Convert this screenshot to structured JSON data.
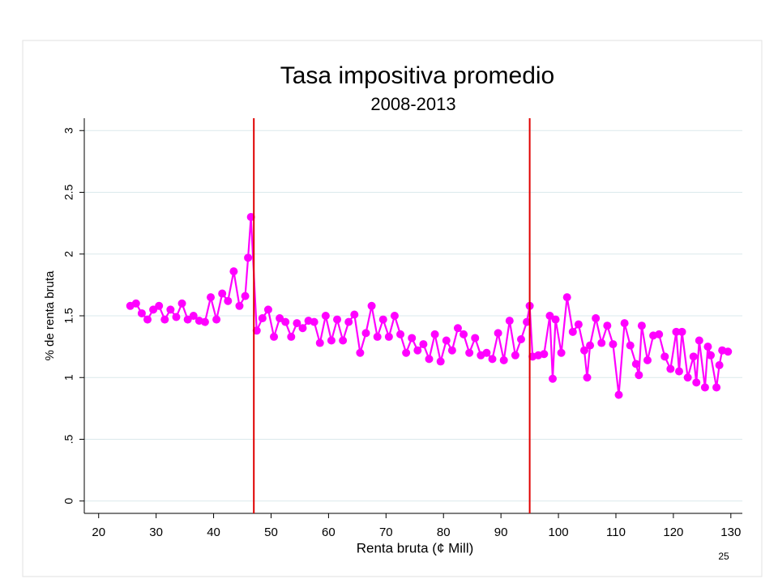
{
  "slide_number": "25",
  "chart_data": {
    "type": "line",
    "title": "Tasa impositiva promedio",
    "subtitle": "2008-2013",
    "xlabel": "Renta bruta (¢ Mill)",
    "ylabel": "% de renta bruta",
    "color": "#ff00ff",
    "grid": true,
    "vlines": [
      47,
      95
    ],
    "vline_color": "#e00000",
    "xlim": [
      17.5,
      132
    ],
    "ylim": [
      -0.1,
      3.1
    ],
    "xticks": [
      20,
      30,
      40,
      50,
      60,
      70,
      80,
      90,
      100,
      110,
      120,
      130
    ],
    "yticks": [
      0,
      {
        "value": 0.5,
        "label": ".5"
      },
      1,
      1.5,
      2,
      2.5,
      3
    ],
    "x": [
      25.5,
      26.5,
      27.5,
      28.5,
      29.5,
      30.5,
      31.5,
      32.5,
      33.5,
      34.5,
      35.5,
      36.5,
      37.5,
      38.5,
      39.5,
      40.5,
      41.5,
      42.5,
      43.5,
      44.5,
      45.5,
      46.0,
      46.5,
      47.5,
      48.5,
      49.5,
      50.5,
      51.5,
      52.5,
      53.5,
      54.5,
      55.5,
      56.5,
      57.5,
      58.5,
      59.5,
      60.5,
      61.5,
      62.5,
      63.5,
      64.5,
      65.5,
      66.5,
      67.5,
      68.5,
      69.5,
      70.5,
      71.5,
      72.5,
      73.5,
      74.5,
      75.5,
      76.5,
      77.5,
      78.5,
      79.5,
      80.5,
      81.5,
      82.5,
      83.5,
      84.5,
      85.5,
      86.5,
      87.5,
      88.5,
      89.5,
      90.5,
      91.5,
      92.5,
      93.5,
      94.5,
      95.0,
      95.5,
      96.5,
      97.5,
      98.5,
      99.0,
      99.5,
      100.5,
      101.5,
      102.5,
      103.5,
      104.5,
      105.0,
      105.5,
      106.5,
      107.5,
      108.5,
      109.5,
      110.5,
      111.5,
      112.5,
      113.5,
      114.0,
      114.5,
      115.5,
      116.5,
      117.5,
      118.5,
      119.5,
      120.5,
      121.0,
      121.5,
      122.5,
      123.5,
      124.0,
      124.5,
      125.5,
      126.0,
      126.5,
      127.5,
      128.0,
      128.5,
      129.5
    ],
    "values": [
      1.58,
      1.6,
      1.52,
      1.47,
      1.55,
      1.58,
      1.47,
      1.55,
      1.49,
      1.6,
      1.47,
      1.5,
      1.46,
      1.45,
      1.65,
      1.47,
      1.68,
      1.62,
      1.86,
      1.58,
      1.66,
      1.97,
      2.3,
      1.38,
      1.48,
      1.55,
      1.33,
      1.48,
      1.45,
      1.33,
      1.44,
      1.4,
      1.46,
      1.45,
      1.28,
      1.5,
      1.3,
      1.47,
      1.3,
      1.45,
      1.51,
      1.2,
      1.36,
      1.58,
      1.33,
      1.47,
      1.33,
      1.5,
      1.35,
      1.2,
      1.32,
      1.22,
      1.27,
      1.15,
      1.35,
      1.13,
      1.3,
      1.22,
      1.4,
      1.35,
      1.2,
      1.32,
      1.18,
      1.2,
      1.15,
      1.36,
      1.14,
      1.46,
      1.18,
      1.31,
      1.45,
      1.58,
      1.17,
      1.18,
      1.19,
      1.5,
      0.99,
      1.47,
      1.2,
      1.65,
      1.37,
      1.43,
      1.22,
      1.0,
      1.26,
      1.48,
      1.28,
      1.42,
      1.27,
      0.86,
      1.44,
      1.26,
      1.11,
      1.02,
      1.42,
      1.14,
      1.34,
      1.35,
      1.17,
      1.07,
      1.37,
      1.05,
      1.37,
      1.0,
      1.17,
      0.96,
      1.3,
      0.92,
      1.25,
      1.18,
      0.92,
      1.1,
      1.22,
      1.21
    ]
  }
}
